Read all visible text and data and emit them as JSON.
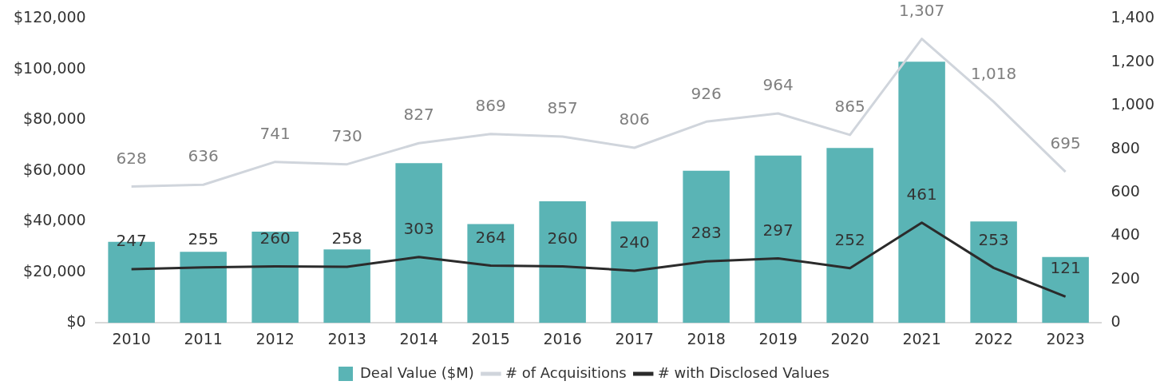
{
  "chart_data": {
    "type": "bar",
    "categories": [
      "2010",
      "2011",
      "2012",
      "2013",
      "2014",
      "2015",
      "2016",
      "2017",
      "2018",
      "2019",
      "2020",
      "2021",
      "2022",
      "2023"
    ],
    "ylim": [
      0,
      120000
    ],
    "yticks": [
      {
        "value": 0,
        "label": "$0"
      },
      {
        "value": 20000,
        "label": "$20,000"
      },
      {
        "value": 40000,
        "label": "$40,000"
      },
      {
        "value": 60000,
        "label": "$60,000"
      },
      {
        "value": 80000,
        "label": "$80,000"
      },
      {
        "value": 100000,
        "label": "$100,000"
      },
      {
        "value": 120000,
        "label": "$120,000"
      }
    ],
    "y2lim": [
      0,
      1400
    ],
    "y2ticks": [
      {
        "value": 0,
        "label": "0"
      },
      {
        "value": 200,
        "label": "200"
      },
      {
        "value": 400,
        "label": "400"
      },
      {
        "value": 600,
        "label": "600"
      },
      {
        "value": 800,
        "label": "800"
      },
      {
        "value": 1000,
        "label": "1,000"
      },
      {
        "value": 1200,
        "label": "1,200"
      },
      {
        "value": 1400,
        "label": "1,400"
      }
    ],
    "grid": false,
    "legend": "bottom",
    "series": [
      {
        "name": "Deal Value ($M)",
        "color": "#5ab4b5",
        "values": [
          32000,
          28000,
          36000,
          29000,
          63000,
          39000,
          48000,
          40000,
          60000,
          66000,
          69000,
          103000,
          40000,
          26000
        ]
      },
      {
        "name": "# of Acquisitions",
        "type": "line",
        "axis": "y2",
        "color": "#d0d5dc",
        "values": [
          628,
          636,
          741,
          730,
          827,
          869,
          857,
          806,
          926,
          964,
          865,
          1307,
          1018,
          695
        ],
        "value_labels": [
          "628",
          "636",
          "741",
          "730",
          "827",
          "869",
          "857",
          "806",
          "926",
          "964",
          "865",
          "1,307",
          "1,018",
          "695"
        ]
      },
      {
        "name": "# with Disclosed Values",
        "type": "line",
        "axis": "y2",
        "color": "#2b2b2b",
        "values": [
          247,
          255,
          260,
          258,
          303,
          264,
          260,
          240,
          283,
          297,
          252,
          461,
          253,
          121
        ],
        "value_labels": [
          "247",
          "255",
          "260",
          "258",
          "303",
          "264",
          "260",
          "240",
          "283",
          "297",
          "252",
          "461",
          "253",
          "121"
        ]
      }
    ]
  }
}
